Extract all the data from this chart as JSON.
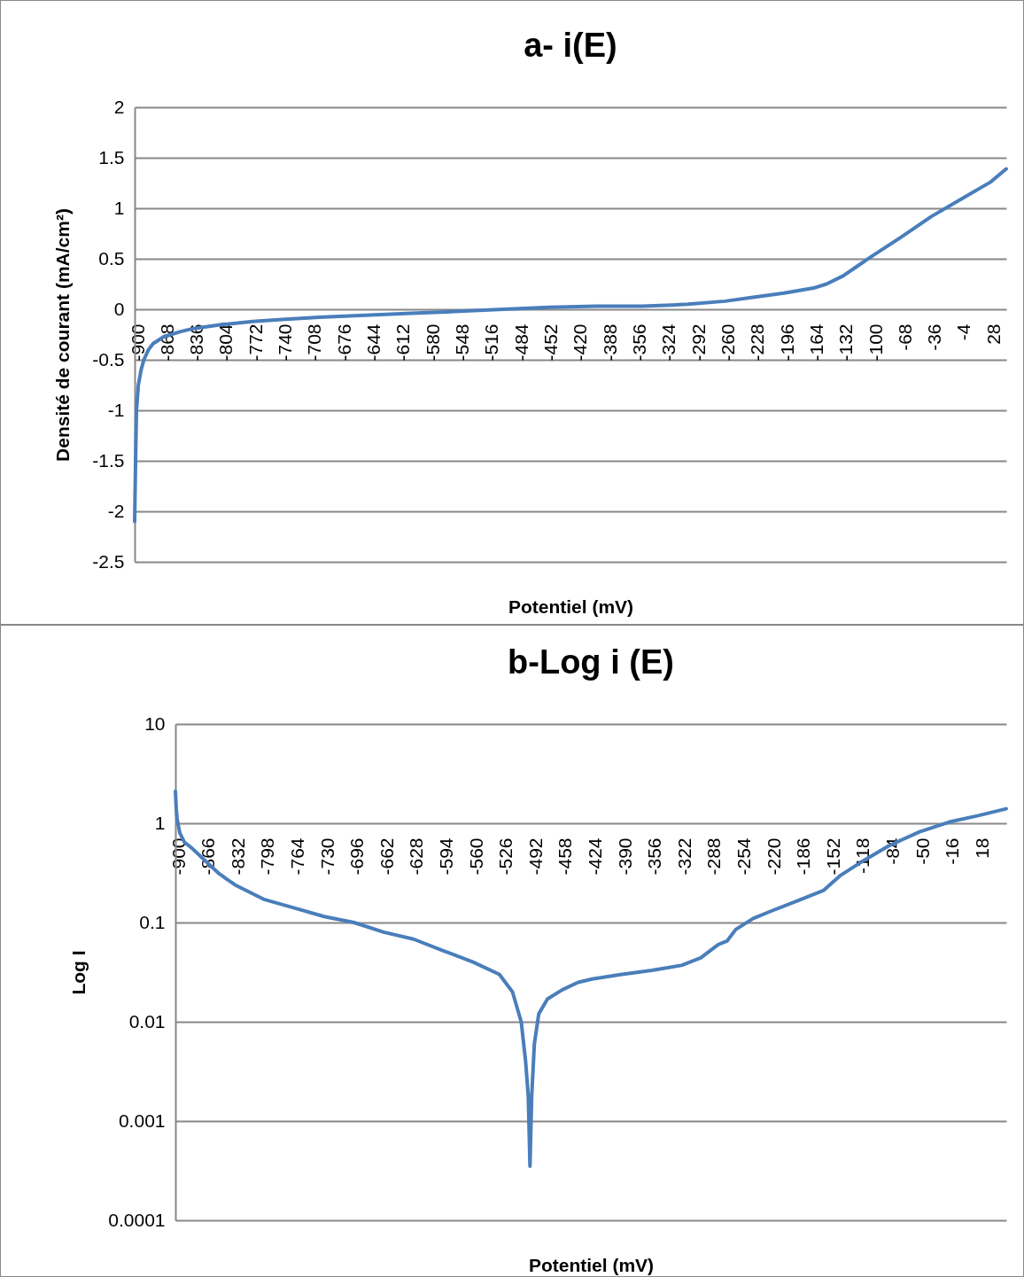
{
  "chart_data": [
    {
      "type": "line",
      "title": "a- i(E)",
      "xlabel": "Potentiel (mV)",
      "ylabel": "Densité de courant (mA/cm²)",
      "xlim": [
        -900,
        45
      ],
      "xticks": [
        -900,
        -868,
        -836,
        -804,
        -772,
        -740,
        -708,
        -676,
        -644,
        -612,
        -580,
        -548,
        -516,
        -484,
        -452,
        -420,
        -388,
        -356,
        -324,
        -292,
        -260,
        -228,
        -196,
        -164,
        -132,
        -100,
        -68,
        -36,
        -4,
        28
      ],
      "ylim": [
        -2.5,
        2
      ],
      "yticks": [
        -2.5,
        -2,
        -1.5,
        -1,
        -0.5,
        0,
        0.5,
        1,
        1.5,
        2
      ],
      "grid": "y",
      "marker": "none",
      "line_style": "solid",
      "series": [
        {
          "color": "#4a7ebb",
          "x": [
            -900,
            -899,
            -898,
            -896,
            -893,
            -890,
            -885,
            -880,
            -868,
            -850,
            -836,
            -804,
            -772,
            -740,
            -700,
            -650,
            -600,
            -548,
            -500,
            -450,
            -400,
            -350,
            -324,
            -300,
            -260,
            -228,
            -196,
            -164,
            -150,
            -132,
            -116,
            -100,
            -68,
            -36,
            -4,
            28,
            45
          ],
          "values": [
            -2.1,
            -1.5,
            -1,
            -0.75,
            -0.6,
            -0.5,
            -0.4,
            -0.34,
            -0.27,
            -0.22,
            -0.19,
            -0.15,
            -0.12,
            -0.1,
            -0.08,
            -0.06,
            -0.04,
            -0.02,
            0,
            0.02,
            0.03,
            0.03,
            0.04,
            0.05,
            0.08,
            0.12,
            0.16,
            0.21,
            0.25,
            0.33,
            0.43,
            0.53,
            0.72,
            0.92,
            1.09,
            1.26,
            1.39
          ]
        }
      ]
    },
    {
      "type": "line",
      "title": "b-Log i (E)",
      "xlabel": "Potentiel (mV)",
      "ylabel": "Log I",
      "log": true,
      "xlim": [
        -900,
        49
      ],
      "xticks": [
        -900,
        -866,
        -832,
        -798,
        -764,
        -730,
        -696,
        -662,
        -628,
        -594,
        -560,
        -526,
        -492,
        -458,
        -424,
        -390,
        -356,
        -322,
        -288,
        -254,
        -220,
        -186,
        -152,
        -118,
        -84,
        -50,
        -16,
        18
      ],
      "ylim": [
        0.0001,
        10
      ],
      "yticks": [
        0.0001,
        0.001,
        0.01,
        0.1,
        1,
        10
      ],
      "grid": "y",
      "marker": "none",
      "line_style": "solid",
      "series": [
        {
          "color": "#4a7ebb",
          "x": [
            -900,
            -899,
            -898,
            -895,
            -890,
            -880,
            -866,
            -850,
            -832,
            -798,
            -764,
            -730,
            -696,
            -662,
            -628,
            -594,
            -560,
            -530,
            -515,
            -505,
            -500,
            -497,
            -495,
            -493,
            -490,
            -485,
            -475,
            -458,
            -440,
            -424,
            -390,
            -356,
            -322,
            -300,
            -280,
            -270,
            -260,
            -240,
            -220,
            -186,
            -160,
            -140,
            -118,
            -84,
            -50,
            -16,
            18,
            49
          ],
          "values": [
            2.1,
            1.4,
            1.1,
            0.8,
            0.65,
            0.55,
            0.42,
            0.31,
            0.24,
            0.17,
            0.14,
            0.115,
            0.1,
            0.08,
            0.068,
            0.052,
            0.04,
            0.03,
            0.02,
            0.01,
            0.004,
            0.0018,
            0.00035,
            0.0018,
            0.006,
            0.012,
            0.017,
            0.021,
            0.025,
            0.027,
            0.03,
            0.033,
            0.037,
            0.044,
            0.06,
            0.065,
            0.085,
            0.11,
            0.13,
            0.17,
            0.21,
            0.3,
            0.4,
            0.6,
            0.82,
            1.03,
            1.2,
            1.4
          ]
        }
      ]
    }
  ]
}
